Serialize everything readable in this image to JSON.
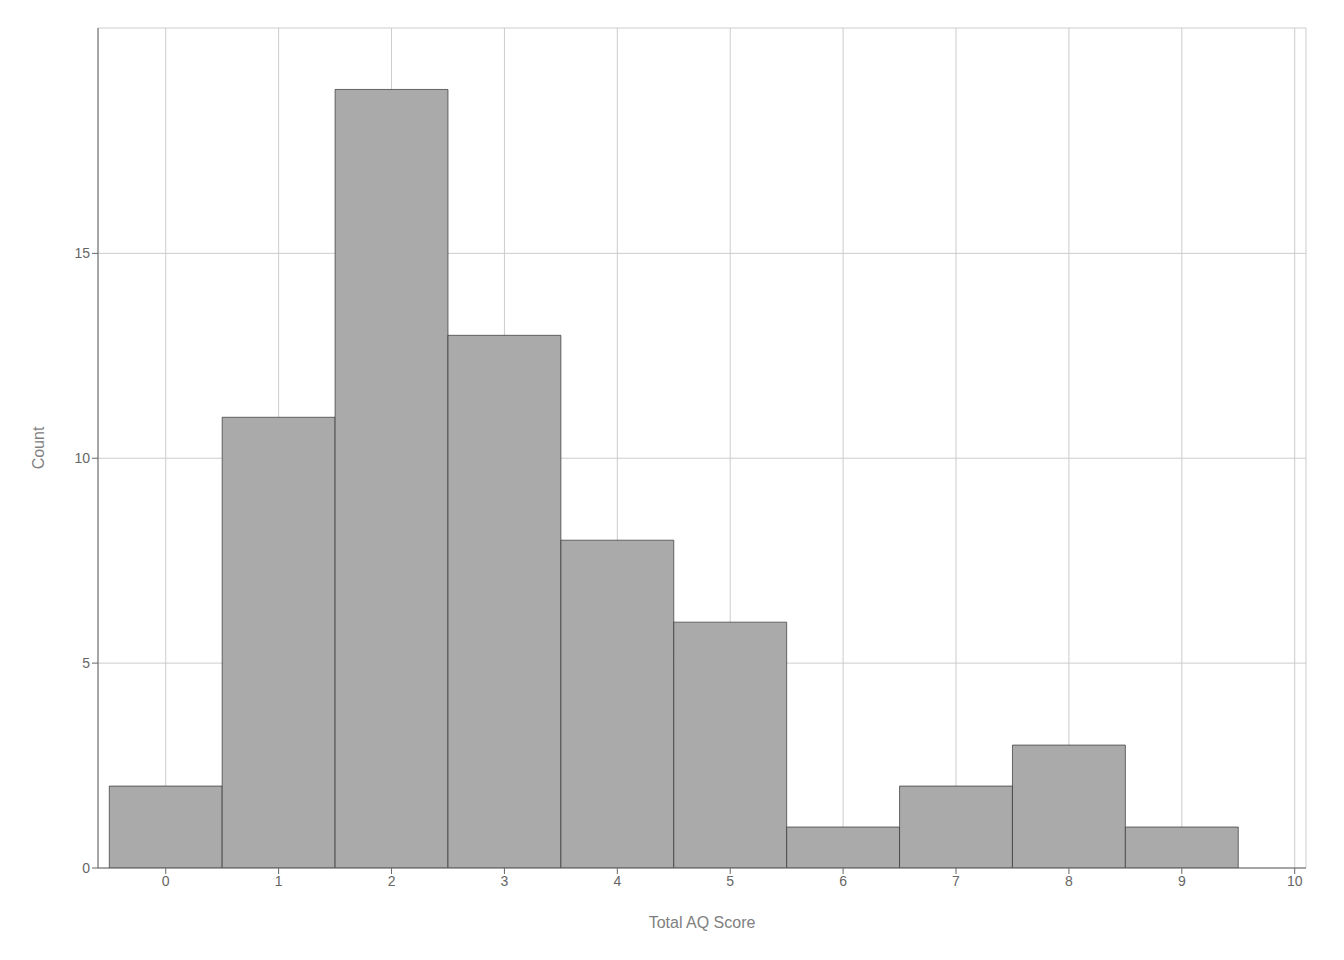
{
  "chart_data": {
    "type": "histogram",
    "bins": [
      -0.5,
      0.5,
      1.5,
      2.5,
      3.5,
      4.5,
      5.5,
      6.5,
      7.5,
      8.5,
      9.5
    ],
    "values": [
      2,
      11,
      19,
      13,
      8,
      6,
      1,
      2,
      3,
      1
    ],
    "color": "#aaaaaa",
    "xlabel": "Total AQ Score",
    "ylabel": "Count",
    "xlim": [
      -0.6,
      10.1
    ],
    "ylim": [
      0,
      20.5
    ],
    "xticks": [
      0,
      1,
      2,
      3,
      4,
      5,
      6,
      7,
      8,
      9,
      10
    ],
    "yticks": [
      0,
      5,
      10,
      15
    ],
    "grid": true
  }
}
